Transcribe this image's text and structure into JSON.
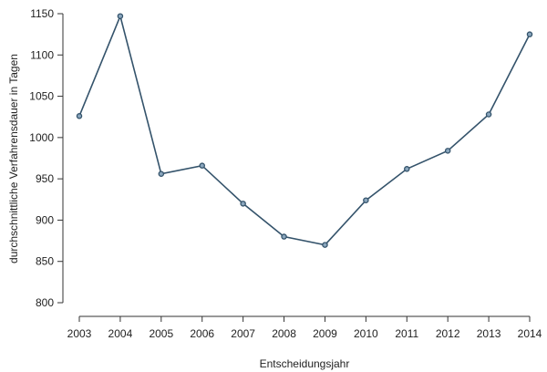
{
  "chart_data": {
    "type": "line",
    "title": "",
    "xlabel": "Entscheidungsjahr",
    "ylabel": "durchschnittliche Verfahrensdauer in Tagen",
    "x": [
      "2003",
      "2004",
      "2005",
      "2006",
      "2007",
      "2008",
      "2009",
      "2010",
      "2011",
      "2012",
      "2013",
      "2014"
    ],
    "series": [
      {
        "values": [
          1026,
          1147,
          956,
          966,
          920,
          880,
          870,
          924,
          962,
          984,
          1028,
          1125
        ],
        "color": "#34536b"
      }
    ],
    "ylim": [
      800,
      1150
    ],
    "yticks": [
      800,
      850,
      900,
      950,
      1000,
      1050,
      1100,
      1150
    ],
    "grid": false,
    "legend": "none",
    "marker": "open-circle"
  }
}
